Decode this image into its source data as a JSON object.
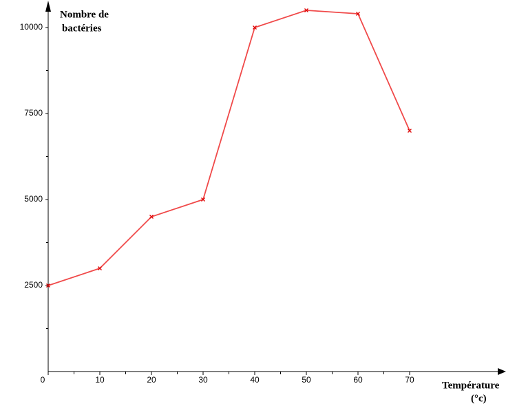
{
  "chart_data": {
    "type": "line",
    "x_label": [
      "Température",
      "(°c)"
    ],
    "y_label": [
      "Nombre de",
      "bactéries"
    ],
    "x": [
      0,
      10,
      20,
      30,
      40,
      50,
      60,
      70
    ],
    "series": [
      {
        "color": "#f04a4a",
        "values": [
          2500,
          3000,
          4500,
          5000,
          10000,
          10500,
          10400,
          7000
        ]
      }
    ],
    "xlim": [
      0,
      86
    ],
    "ylim": [
      0,
      10700
    ],
    "xticks": [
      0,
      10,
      20,
      30,
      40,
      50,
      60,
      70
    ],
    "yticks": [
      2500,
      5000,
      7500,
      10000
    ]
  }
}
